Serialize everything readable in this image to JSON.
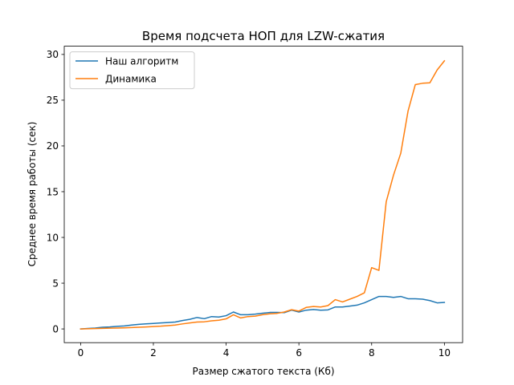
{
  "chart_data": {
    "type": "line",
    "title": "Время подсчета НОП для LZW-сжатия",
    "xlabel": "Размер сжатого текста (Кб)",
    "ylabel": "Среднее время работы (сек)",
    "xlim": [
      -0.45,
      10.5
    ],
    "ylim": [
      -1.5,
      30.9
    ],
    "xticks": [
      0,
      2,
      4,
      6,
      8,
      10
    ],
    "yticks": [
      0,
      5,
      10,
      15,
      20,
      25,
      30
    ],
    "grid": false,
    "legend_position": "top-left",
    "series": [
      {
        "name": "Наш алгоритм",
        "color": "#1f77b4",
        "x": [
          0,
          0.2,
          0.4,
          0.6,
          0.8,
          1.0,
          1.2,
          1.4,
          1.6,
          1.8,
          2.0,
          2.2,
          2.4,
          2.6,
          2.8,
          3.0,
          3.2,
          3.4,
          3.6,
          3.8,
          4.0,
          4.2,
          4.4,
          4.6,
          4.8,
          5.0,
          5.2,
          5.4,
          5.6,
          5.8,
          6.0,
          6.2,
          6.4,
          6.6,
          6.8,
          7.0,
          7.2,
          7.4,
          7.6,
          7.8,
          8.0,
          8.2,
          8.4,
          8.6,
          8.8,
          9.0,
          9.2,
          9.4,
          9.6,
          9.8,
          10.0
        ],
        "y": [
          0,
          0.05,
          0.1,
          0.18,
          0.22,
          0.28,
          0.33,
          0.42,
          0.5,
          0.55,
          0.6,
          0.65,
          0.7,
          0.75,
          0.92,
          1.05,
          1.25,
          1.12,
          1.35,
          1.3,
          1.45,
          1.85,
          1.55,
          1.55,
          1.62,
          1.72,
          1.8,
          1.8,
          1.78,
          2.05,
          1.85,
          2.05,
          2.12,
          2.05,
          2.08,
          2.4,
          2.4,
          2.5,
          2.6,
          2.85,
          3.2,
          3.55,
          3.55,
          3.45,
          3.55,
          3.3,
          3.3,
          3.25,
          3.1,
          2.85,
          2.9
        ]
      },
      {
        "name": "Динамика",
        "color": "#ff7f0e",
        "x": [
          0,
          0.2,
          0.4,
          0.6,
          0.8,
          1.0,
          1.2,
          1.4,
          1.6,
          1.8,
          2.0,
          2.2,
          2.4,
          2.6,
          2.8,
          3.0,
          3.2,
          3.4,
          3.6,
          3.8,
          4.0,
          4.2,
          4.4,
          4.6,
          4.8,
          5.0,
          5.2,
          5.4,
          5.6,
          5.8,
          6.0,
          6.2,
          6.4,
          6.6,
          6.8,
          7.0,
          7.2,
          7.4,
          7.6,
          7.8,
          8.0,
          8.2,
          8.4,
          8.6,
          8.8,
          9.0,
          9.2,
          9.4,
          9.6,
          9.8,
          10.0
        ],
        "y": [
          0,
          0.02,
          0.04,
          0.06,
          0.08,
          0.1,
          0.12,
          0.15,
          0.18,
          0.22,
          0.26,
          0.3,
          0.36,
          0.42,
          0.55,
          0.65,
          0.75,
          0.78,
          0.88,
          0.95,
          1.1,
          1.55,
          1.2,
          1.35,
          1.4,
          1.55,
          1.65,
          1.7,
          1.85,
          2.1,
          1.95,
          2.35,
          2.45,
          2.4,
          2.55,
          3.2,
          2.95,
          3.25,
          3.55,
          3.95,
          6.7,
          6.4,
          13.9,
          16.8,
          19.2,
          23.8,
          26.7,
          26.85,
          26.9,
          28.3,
          29.3
        ]
      }
    ]
  }
}
